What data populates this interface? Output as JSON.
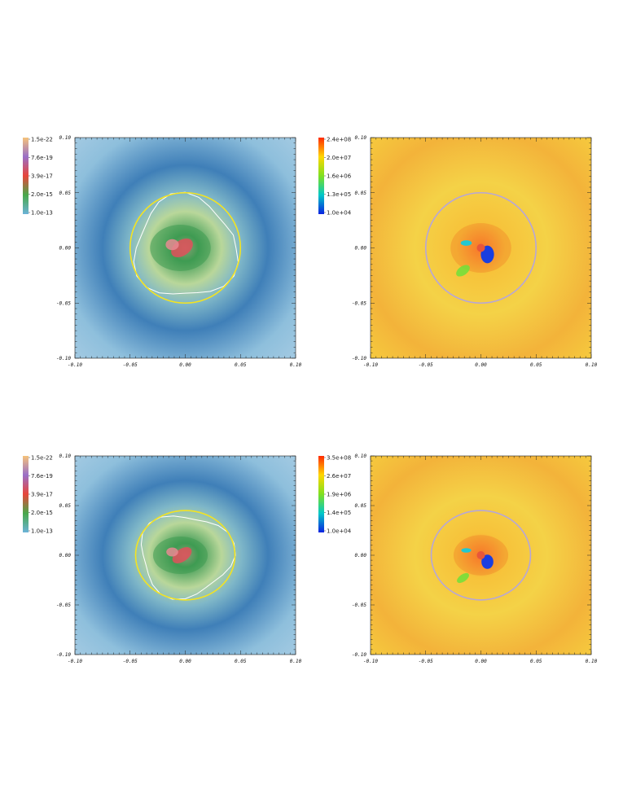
{
  "chart_data": [
    {
      "type": "heatmap",
      "panel": "top-left",
      "xlim": [
        -0.1,
        0.1
      ],
      "ylim": [
        -0.1,
        0.1
      ],
      "xticks": [
        "-0.10",
        "-0.05",
        "0.00",
        "0.05",
        "0.10"
      ],
      "yticks": [
        "0.10",
        "0.05",
        "0.00",
        "-0.05",
        "-0.10"
      ],
      "colorbar_labels": [
        "1.5e-22",
        "7.6e-19",
        "3.9e-17",
        "2.0e-15",
        "1.0e-13"
      ],
      "colorbar_colors": [
        "#f5c27a",
        "#9a6fc8",
        "#e8453a",
        "#48a84a",
        "#6cb3d8"
      ],
      "circle": {
        "cx": 0.0,
        "cy": 0.0,
        "r": 0.05,
        "color": "#f3e321"
      },
      "background_color": "#7fb2d4",
      "core_color": "#e0505a"
    },
    {
      "type": "heatmap",
      "panel": "top-right",
      "xlim": [
        -0.1,
        0.1
      ],
      "ylim": [
        -0.1,
        0.1
      ],
      "xticks": [
        "-0.10",
        "-0.05",
        "0.00",
        "0.05",
        "0.10"
      ],
      "yticks": [
        "0.10",
        "0.05",
        "0.00",
        "-0.05",
        "-0.10"
      ],
      "colorbar_labels": [
        "2.4e+08",
        "2.0e+07",
        "1.6e+06",
        "1.3e+05",
        "1.0e+04"
      ],
      "colorbar_colors": [
        "#ff2a00",
        "#ffd700",
        "#7fe020",
        "#00c8c8",
        "#0a22e0"
      ],
      "circle": {
        "cx": 0.0,
        "cy": 0.0,
        "r": 0.05,
        "color": "#b6a6d8"
      },
      "background_color": "#f2cf45",
      "core_color": "#e8573a"
    },
    {
      "type": "heatmap",
      "panel": "bottom-left",
      "xlim": [
        -0.1,
        0.1
      ],
      "ylim": [
        -0.1,
        0.1
      ],
      "xticks": [
        "-0.10",
        "-0.05",
        "0.00",
        "0.05",
        "0.10"
      ],
      "yticks": [
        "0.10",
        "0.05",
        "0.00",
        "-0.05",
        "-0.10"
      ],
      "colorbar_labels": [
        "1.5e-22",
        "7.6e-19",
        "3.9e-17",
        "2.0e-15",
        "1.0e-13"
      ],
      "colorbar_colors": [
        "#f5c27a",
        "#9a6fc8",
        "#e8453a",
        "#48a84a",
        "#6cb3d8"
      ],
      "circle": {
        "cx": 0.0,
        "cy": 0.0,
        "r": 0.045,
        "color": "#f3e321"
      },
      "background_color": "#7fb2d4",
      "core_color": "#e0505a"
    },
    {
      "type": "heatmap",
      "panel": "bottom-right",
      "xlim": [
        -0.1,
        0.1
      ],
      "ylim": [
        -0.1,
        0.1
      ],
      "xticks": [
        "-0.10",
        "-0.05",
        "0.00",
        "0.05",
        "0.10"
      ],
      "yticks": [
        "0.10",
        "0.05",
        "0.00",
        "-0.05",
        "-0.10"
      ],
      "colorbar_labels": [
        "3.5e+08",
        "2.6e+07",
        "1.9e+06",
        "1.4e+05",
        "1.0e+04"
      ],
      "colorbar_colors": [
        "#ff2a00",
        "#ffd700",
        "#7fe020",
        "#00c8c8",
        "#0a22e0"
      ],
      "circle": {
        "cx": 0.0,
        "cy": 0.0,
        "r": 0.045,
        "color": "#b6a6d8"
      },
      "background_color": "#ecd64a",
      "core_color": "#e8573a"
    }
  ]
}
